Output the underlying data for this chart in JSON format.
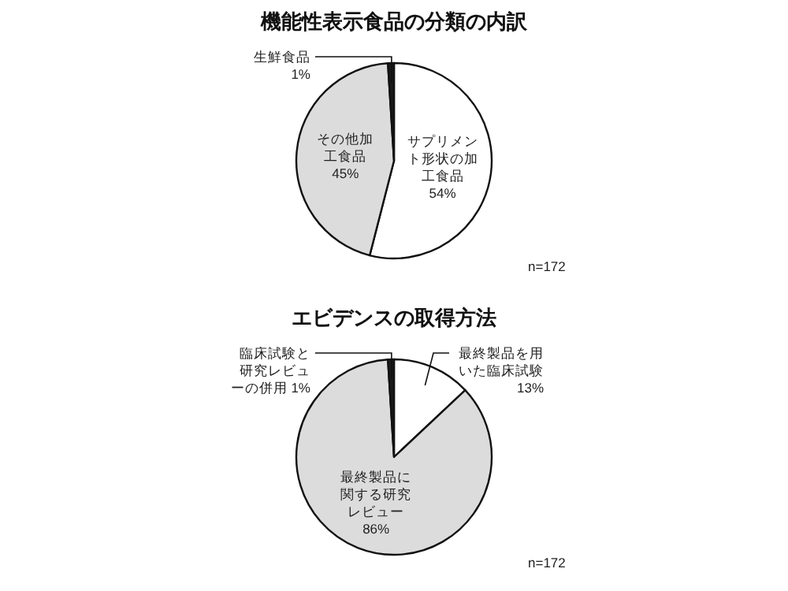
{
  "chart_data": [
    {
      "type": "pie",
      "title": "機能性表示食品の分類の内訳",
      "categories": [
        "サプリメント形状の加工食品",
        "その他加工食品",
        "生鮮食品"
      ],
      "values": [
        54,
        45,
        1
      ],
      "value_labels": [
        "54%",
        "45%",
        "1%"
      ],
      "colors": [
        "#ffffff",
        "#dcdcdc",
        "#1a1a1a"
      ],
      "annotations": [
        "n=172"
      ]
    },
    {
      "type": "pie",
      "title": "エビデンスの取得方法",
      "categories": [
        "最終製品を用いた臨床試験",
        "最終製品に関する研究レビュー",
        "臨床試験と研究レビューの併用"
      ],
      "values": [
        13,
        86,
        1
      ],
      "value_labels": [
        "13%",
        "86%",
        "1%"
      ],
      "colors": [
        "#ffffff",
        "#dcdcdc",
        "#1a1a1a"
      ],
      "annotations": [
        "n=172"
      ]
    }
  ]
}
